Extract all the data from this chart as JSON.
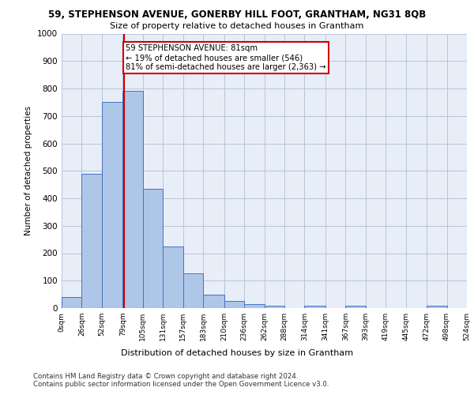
{
  "title_line1": "59, STEPHENSON AVENUE, GONERBY HILL FOOT, GRANTHAM, NG31 8QB",
  "title_line2": "Size of property relative to detached houses in Grantham",
  "xlabel": "Distribution of detached houses by size in Grantham",
  "ylabel": "Number of detached properties",
  "footer_line1": "Contains HM Land Registry data © Crown copyright and database right 2024.",
  "footer_line2": "Contains public sector information licensed under the Open Government Licence v3.0.",
  "bin_edges": [
    0,
    26,
    52,
    79,
    105,
    131,
    157,
    183,
    210,
    236,
    262,
    288,
    314,
    341,
    367,
    393,
    419,
    445,
    472,
    498,
    524
  ],
  "bar_heights": [
    40,
    490,
    750,
    790,
    435,
    225,
    128,
    50,
    27,
    15,
    10,
    0,
    8,
    0,
    8,
    0,
    0,
    0,
    8,
    0
  ],
  "bar_color": "#aec6e8",
  "bar_edge_color": "#4472c4",
  "grid_color": "#b8c4d8",
  "background_color": "#e8eef8",
  "vline_x": 81,
  "vline_color": "#cc0000",
  "annotation_text": "59 STEPHENSON AVENUE: 81sqm\n← 19% of detached houses are smaller (546)\n81% of semi-detached houses are larger (2,363) →",
  "annotation_box_color": "#cc0000",
  "ylim": [
    0,
    1000
  ],
  "yticks": [
    0,
    100,
    200,
    300,
    400,
    500,
    600,
    700,
    800,
    900,
    1000
  ]
}
